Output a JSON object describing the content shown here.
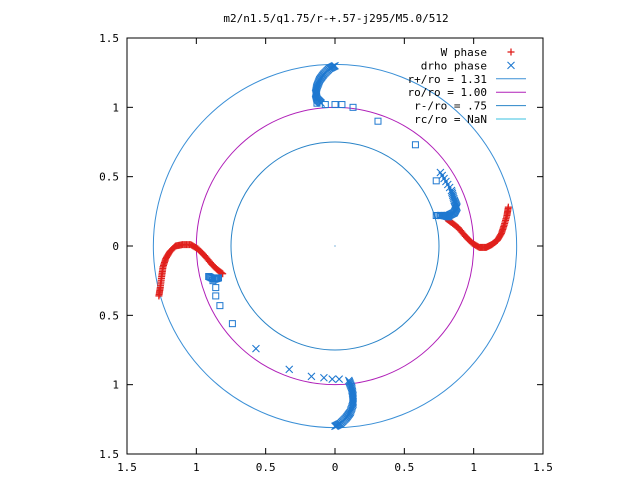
{
  "chart_data": {
    "type": "scatter",
    "title": "m2/n1.5/q1.75/r-+.57-j295/M5.0/512",
    "xlabel": "",
    "ylabel": "",
    "xlim": [
      -1.5,
      1.5
    ],
    "ylim": [
      -1.5,
      1.5
    ],
    "x_ticks": [
      -1.5,
      -1,
      -0.5,
      0,
      0.5,
      1,
      1.5
    ],
    "x_tick_labels": [
      "1.5",
      "1",
      "0.5",
      "0",
      "0.5",
      "1",
      "1.5"
    ],
    "y_ticks": [
      1.5,
      1,
      0.5,
      0,
      -0.5,
      -1,
      -1.5
    ],
    "y_tick_labels": [
      "1.5",
      "1",
      "0.5",
      "0",
      "0.5",
      "1",
      "1.5"
    ],
    "grid": false,
    "legend_position": "top-right",
    "circles": [
      {
        "name": "r+/ro = 1.31",
        "r": 1.31,
        "color": "#3a8fd6"
      },
      {
        "name": "ro/ro = 1.00",
        "r": 1.0,
        "color": "#b020b8"
      },
      {
        "name": "r-/ro = .75",
        "r": 0.75,
        "color": "#2a84c8"
      },
      {
        "name": "rc/ro = NaN",
        "r": null,
        "color": "#38c0e0"
      }
    ],
    "series": [
      {
        "name": "W phase",
        "marker": "+",
        "color": "#e0201c",
        "points": [
          [
            -1.27,
            -0.36
          ],
          [
            -1.26,
            -0.3
          ],
          [
            -1.25,
            -0.22
          ],
          [
            -1.24,
            -0.15
          ],
          [
            -1.22,
            -0.09
          ],
          [
            -1.19,
            -0.04
          ],
          [
            -1.15,
            0.0
          ],
          [
            -1.1,
            0.01
          ],
          [
            -1.04,
            0.01
          ],
          [
            -0.99,
            -0.02
          ],
          [
            -0.94,
            -0.07
          ],
          [
            -0.89,
            -0.13
          ],
          [
            -0.85,
            -0.17
          ],
          [
            -0.81,
            -0.2
          ],
          [
            1.25,
            0.28
          ],
          [
            1.24,
            0.22
          ],
          [
            1.22,
            0.15
          ],
          [
            1.2,
            0.09
          ],
          [
            1.17,
            0.04
          ],
          [
            1.13,
            0.01
          ],
          [
            1.09,
            -0.01
          ],
          [
            1.04,
            -0.01
          ],
          [
            0.99,
            0.02
          ],
          [
            0.94,
            0.07
          ],
          [
            0.89,
            0.13
          ],
          [
            0.84,
            0.17
          ],
          [
            0.8,
            0.2
          ]
        ]
      },
      {
        "name": "drho phase",
        "marker": "x",
        "color": "#1e78d0",
        "points": [
          [
            0.0,
            1.3
          ],
          [
            -0.04,
            1.28
          ],
          [
            -0.08,
            1.24
          ],
          [
            -0.11,
            1.2
          ],
          [
            -0.13,
            1.15
          ],
          [
            -0.14,
            1.1
          ],
          [
            -0.13,
            1.06
          ],
          [
            -0.1,
            1.03
          ],
          [
            0.0,
            -1.3
          ],
          [
            0.04,
            -1.28
          ],
          [
            0.08,
            -1.24
          ],
          [
            0.11,
            -1.2
          ],
          [
            0.13,
            -1.14
          ],
          [
            0.13,
            -1.08
          ],
          [
            0.12,
            -1.02
          ],
          [
            0.1,
            -0.97
          ],
          [
            0.76,
            0.22
          ],
          [
            0.82,
            0.22
          ],
          [
            0.86,
            0.24
          ],
          [
            0.88,
            0.28
          ],
          [
            0.86,
            0.33
          ],
          [
            0.84,
            0.4
          ],
          [
            0.76,
            0.53
          ],
          [
            -0.57,
            -0.74
          ],
          [
            -0.33,
            -0.89
          ],
          [
            -0.17,
            -0.94
          ],
          [
            -0.08,
            -0.95
          ],
          [
            -0.02,
            -0.96
          ],
          [
            0.03,
            -0.96
          ]
        ]
      },
      {
        "name": "drho phase (open squares)",
        "marker": "square",
        "color": "#1e78d0",
        "points": [
          [
            -0.13,
            1.03
          ],
          [
            -0.07,
            1.02
          ],
          [
            0.0,
            1.02
          ],
          [
            0.05,
            1.02
          ],
          [
            0.13,
            1.0
          ],
          [
            0.31,
            0.9
          ],
          [
            0.58,
            0.73
          ],
          [
            0.73,
            0.47
          ],
          [
            -0.91,
            -0.22
          ],
          [
            -0.88,
            -0.25
          ],
          [
            -0.86,
            -0.3
          ],
          [
            -0.86,
            -0.36
          ],
          [
            -0.83,
            -0.43
          ],
          [
            -0.74,
            -0.56
          ]
        ]
      }
    ]
  }
}
